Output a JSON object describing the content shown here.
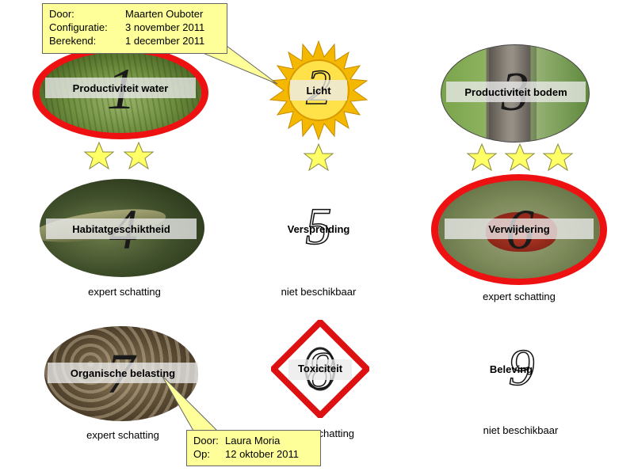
{
  "items": [
    {
      "number": "1",
      "label": "Productiviteit water"
    },
    {
      "number": "2",
      "label": "Licht"
    },
    {
      "number": "3",
      "label": "Productiviteit bodem"
    },
    {
      "number": "4",
      "label": "Habitatgeschiktheid",
      "caption": "expert schatting"
    },
    {
      "number": "5",
      "label": "Verspreiding",
      "caption": "niet beschikbaar"
    },
    {
      "number": "6",
      "label": "Verwijdering",
      "caption": "expert schatting"
    },
    {
      "number": "7",
      "label": "Organische  belasting",
      "caption": "expert schatting"
    },
    {
      "number": "8",
      "label": "Toxiciteit",
      "caption": "schatting"
    },
    {
      "number": "9",
      "label": "Beleving",
      "caption": "niet beschikbaar"
    }
  ],
  "ratings": {
    "item1": 2,
    "item2": 1,
    "item3": 3
  },
  "callout_top": {
    "door_label": "Door:",
    "door_value": "Maarten Ouboter",
    "config_label": "Configuratie:",
    "config_value": "3 november 2011",
    "berekend_label": "Berekend:",
    "berekend_value": "1 december 2011"
  },
  "callout_bottom": {
    "door_label": "Door:",
    "door_value": "Laura Moria",
    "op_label": "Op:",
    "op_value": "12 oktober 2011"
  },
  "colors": {
    "highlight_ring": "#ee1111",
    "star_fill": "#ffff66",
    "callout_bg": "#ffff99",
    "sun": "#f5b800",
    "hazard": "#dd1111"
  },
  "icons": [
    "sun-icon",
    "star-icon",
    "hazard-diamond-icon"
  ]
}
